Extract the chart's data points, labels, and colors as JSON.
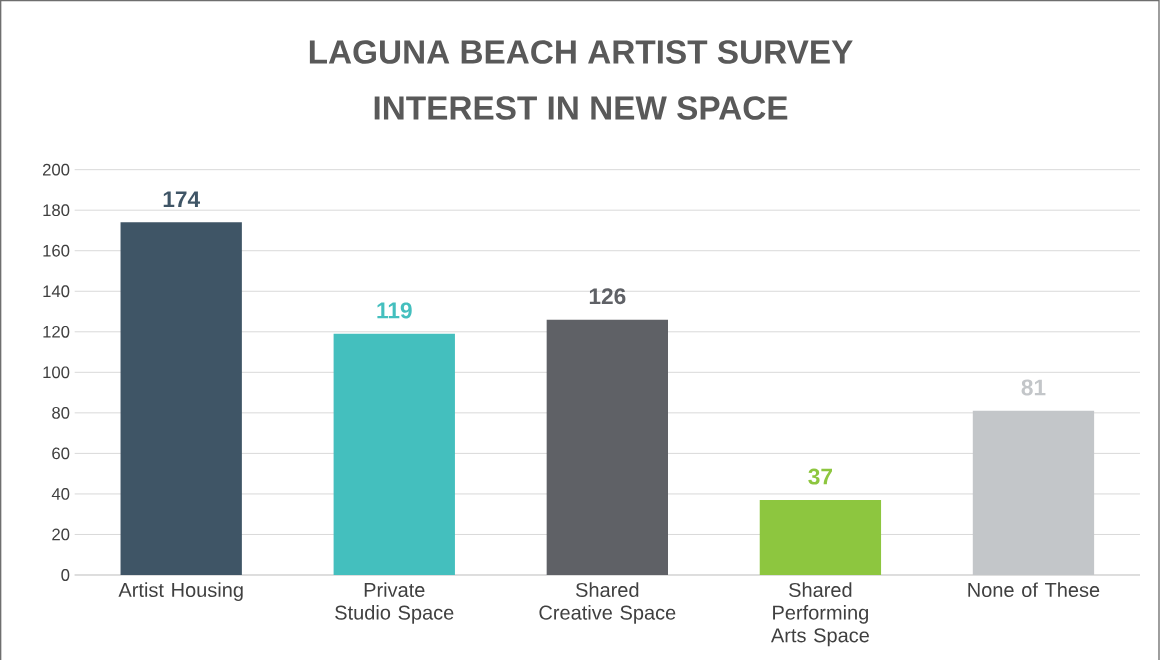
{
  "chart_data": {
    "type": "bar",
    "title": "LAGUNA BEACH ARTIST SURVEY",
    "subtitle": "INTEREST IN NEW SPACE",
    "categories": [
      "Artist Housing",
      "Private Studio Space",
      "Shared Creative Space",
      "Shared Performing Arts Space",
      "None of These"
    ],
    "values": [
      174,
      119,
      126,
      37,
      81
    ],
    "colors": [
      "#3f5566",
      "#44bfbe",
      "#5f6166",
      "#8dc63f",
      "#c3c6c9"
    ],
    "ylim": [
      0,
      200
    ],
    "yticks": [
      0,
      20,
      40,
      60,
      80,
      100,
      120,
      140,
      160,
      180,
      200
    ],
    "grid": "y",
    "data_labels": true
  }
}
